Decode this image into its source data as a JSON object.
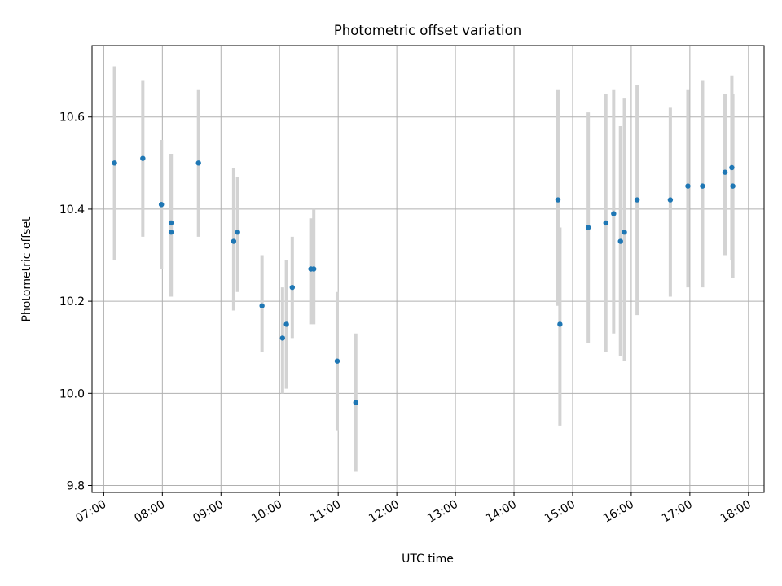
{
  "chart_data": {
    "type": "scatter",
    "title": "Photometric offset variation",
    "xlabel": "UTC time",
    "ylabel": "Photometric offset",
    "x_ticks": [
      "07:00",
      "08:00",
      "09:00",
      "10:00",
      "11:00",
      "12:00",
      "13:00",
      "14:00",
      "15:00",
      "16:00",
      "17:00",
      "18:00"
    ],
    "x_tick_values": [
      "07:00",
      "08:00",
      "09:00",
      "10:00",
      "11:00",
      "12:00",
      "13:00",
      "14:00",
      "15:00",
      "16:00",
      "17:00",
      "18:00"
    ],
    "y_ticks": [
      "9.8",
      "10.0",
      "10.2",
      "10.4",
      "10.6"
    ],
    "y_tick_values": [
      9.8,
      10.0,
      10.2,
      10.4,
      10.6
    ],
    "xlim": [
      "06:48",
      "18:16"
    ],
    "ylim": [
      9.785,
      10.755
    ],
    "grid": true,
    "colors": {
      "point": "#1f77b4",
      "errorbar": "#d3d3d3",
      "grid": "#b0b0b0"
    },
    "series": [
      {
        "points": [
          {
            "x": "07:11",
            "y": 10.5,
            "ylo": 10.29,
            "yhi": 10.71
          },
          {
            "x": "07:40",
            "y": 10.51,
            "ylo": 10.34,
            "yhi": 10.68
          },
          {
            "x": "07:59",
            "y": 10.41,
            "ylo": 10.27,
            "yhi": 10.55
          },
          {
            "x": "07:59",
            "y": 10.41,
            "ylo": 10.27,
            "yhi": 10.55
          },
          {
            "x": "08:09",
            "y": 10.37,
            "ylo": 10.21,
            "yhi": 10.52
          },
          {
            "x": "08:09",
            "y": 10.35,
            "ylo": 10.21,
            "yhi": 10.52
          },
          {
            "x": "08:37",
            "y": 10.5,
            "ylo": 10.34,
            "yhi": 10.66
          },
          {
            "x": "09:13",
            "y": 10.33,
            "ylo": 10.18,
            "yhi": 10.49
          },
          {
            "x": "09:17",
            "y": 10.35,
            "ylo": 10.22,
            "yhi": 10.47
          },
          {
            "x": "09:42",
            "y": 10.19,
            "ylo": 10.09,
            "yhi": 10.3
          },
          {
            "x": "10:03",
            "y": 10.12,
            "ylo": 10.0,
            "yhi": 10.23
          },
          {
            "x": "10:07",
            "y": 10.15,
            "ylo": 10.01,
            "yhi": 10.29
          },
          {
            "x": "10:13",
            "y": 10.23,
            "ylo": 10.12,
            "yhi": 10.34
          },
          {
            "x": "10:32",
            "y": 10.27,
            "ylo": 10.15,
            "yhi": 10.38
          },
          {
            "x": "10:35",
            "y": 10.27,
            "ylo": 10.15,
            "yhi": 10.4
          },
          {
            "x": "10:59",
            "y": 10.07,
            "ylo": 9.92,
            "yhi": 10.22
          },
          {
            "x": "11:18",
            "y": 9.98,
            "ylo": 9.83,
            "yhi": 10.13
          },
          {
            "x": "14:45",
            "y": 10.42,
            "ylo": 10.19,
            "yhi": 10.66
          },
          {
            "x": "14:47",
            "y": 10.15,
            "ylo": 9.93,
            "yhi": 10.36
          },
          {
            "x": "15:16",
            "y": 10.36,
            "ylo": 10.11,
            "yhi": 10.61
          },
          {
            "x": "15:34",
            "y": 10.37,
            "ylo": 10.09,
            "yhi": 10.65
          },
          {
            "x": "15:42",
            "y": 10.39,
            "ylo": 10.13,
            "yhi": 10.66
          },
          {
            "x": "15:49",
            "y": 10.33,
            "ylo": 10.08,
            "yhi": 10.58
          },
          {
            "x": "15:53",
            "y": 10.35,
            "ylo": 10.07,
            "yhi": 10.64
          },
          {
            "x": "16:06",
            "y": 10.42,
            "ylo": 10.17,
            "yhi": 10.67
          },
          {
            "x": "16:40",
            "y": 10.42,
            "ylo": 10.21,
            "yhi": 10.62
          },
          {
            "x": "16:58",
            "y": 10.45,
            "ylo": 10.23,
            "yhi": 10.66
          },
          {
            "x": "17:13",
            "y": 10.45,
            "ylo": 10.23,
            "yhi": 10.68
          },
          {
            "x": "17:36",
            "y": 10.48,
            "ylo": 10.3,
            "yhi": 10.65
          },
          {
            "x": "17:43",
            "y": 10.49,
            "ylo": 10.29,
            "yhi": 10.69
          },
          {
            "x": "17:44",
            "y": 10.45,
            "ylo": 10.25,
            "yhi": 10.65
          }
        ]
      }
    ]
  }
}
